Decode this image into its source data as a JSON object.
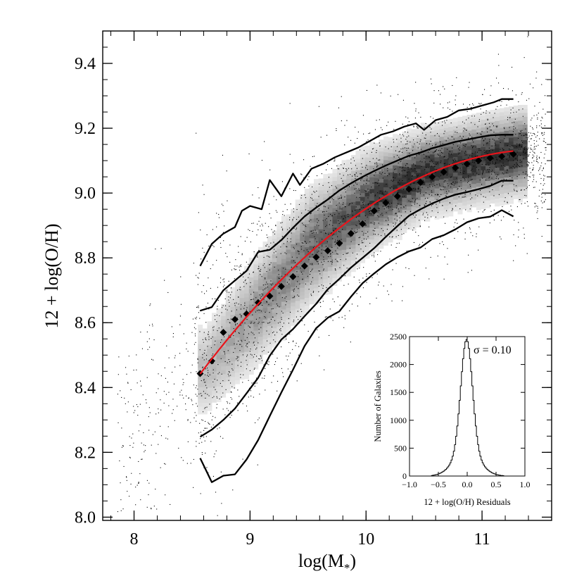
{
  "chart_data": [
    {
      "type": "scatter",
      "title": "",
      "xlabel": "log(M",
      "xlabel_sub": "*",
      "xlabel_close": ")",
      "ylabel": "12 + log(O/H)",
      "xlim": [
        7.73,
        11.6
      ],
      "ylim": [
        7.99,
        9.5
      ],
      "xticks": [
        8,
        9,
        10,
        11
      ],
      "xtick_labels": [
        "8",
        "9",
        "10",
        "11"
      ],
      "yticks": [
        8.0,
        8.2,
        8.4,
        8.6,
        8.8,
        9.0,
        9.2,
        9.4
      ],
      "ytick_labels": [
        "8.0",
        "8.2",
        "8.4",
        "8.6",
        "8.8",
        "9.0",
        "9.2",
        "9.4"
      ],
      "grid": false,
      "colors": {
        "scatter": "#000000",
        "density": "#2a2a2a",
        "contours": "#000000",
        "median_points": "#000000",
        "fit": "#e8141b"
      },
      "density_ridge": {
        "x": [
          8.6,
          9.0,
          9.5,
          10.0,
          10.5,
          11.0,
          11.3
        ],
        "y": [
          8.45,
          8.62,
          8.83,
          8.97,
          9.06,
          9.1,
          9.12
        ],
        "width": [
          0.06,
          0.07,
          0.07,
          0.06,
          0.05,
          0.05,
          0.05
        ]
      },
      "series": [
        {
          "name": "",
          "kind": "contour-upper-outer",
          "x": [
            8.57,
            8.67,
            8.77,
            8.87,
            8.93,
            9.0,
            9.1,
            9.17,
            9.27,
            9.37,
            9.43,
            9.53,
            9.63,
            9.73,
            9.83,
            9.93,
            10.03,
            10.13,
            10.23,
            10.33,
            10.43,
            10.5,
            10.6,
            10.7,
            10.8,
            10.9,
            11.0,
            11.1,
            11.17,
            11.27
          ],
          "y": [
            8.775,
            8.843,
            8.875,
            8.895,
            8.945,
            8.96,
            8.95,
            9.04,
            8.99,
            9.06,
            9.025,
            9.075,
            9.09,
            9.11,
            9.125,
            9.14,
            9.16,
            9.18,
            9.19,
            9.205,
            9.215,
            9.195,
            9.225,
            9.235,
            9.255,
            9.26,
            9.27,
            9.28,
            9.29,
            9.29
          ]
        },
        {
          "name": "",
          "kind": "contour-upper-inner",
          "x": [
            8.57,
            8.67,
            8.77,
            8.87,
            8.97,
            9.07,
            9.17,
            9.27,
            9.37,
            9.47,
            9.57,
            9.67,
            9.77,
            9.87,
            9.97,
            10.07,
            10.17,
            10.27,
            10.37,
            10.47,
            10.57,
            10.67,
            10.77,
            10.87,
            10.97,
            11.07,
            11.17,
            11.27
          ],
          "y": [
            8.637,
            8.648,
            8.7,
            8.73,
            8.76,
            8.818,
            8.825,
            8.855,
            8.893,
            8.928,
            8.955,
            8.98,
            9.008,
            9.03,
            9.05,
            9.068,
            9.085,
            9.1,
            9.115,
            9.125,
            9.138,
            9.148,
            9.158,
            9.165,
            9.172,
            9.178,
            9.18,
            9.18
          ]
        },
        {
          "name": "",
          "kind": "contour-lower-inner",
          "x": [
            8.57,
            8.67,
            8.77,
            8.87,
            8.97,
            9.07,
            9.17,
            9.27,
            9.37,
            9.47,
            9.57,
            9.67,
            9.77,
            9.87,
            9.97,
            10.07,
            10.17,
            10.27,
            10.37,
            10.47,
            10.57,
            10.67,
            10.77,
            10.87,
            10.97,
            11.07,
            11.17,
            11.27
          ],
          "y": [
            8.248,
            8.27,
            8.3,
            8.335,
            8.382,
            8.43,
            8.498,
            8.548,
            8.58,
            8.62,
            8.658,
            8.703,
            8.735,
            8.77,
            8.8,
            8.83,
            8.865,
            8.898,
            8.93,
            8.95,
            8.968,
            8.983,
            8.995,
            9.003,
            9.012,
            9.022,
            9.038,
            9.038
          ]
        },
        {
          "name": "",
          "kind": "contour-lower-outer",
          "x": [
            8.57,
            8.67,
            8.77,
            8.87,
            8.97,
            9.07,
            9.17,
            9.27,
            9.37,
            9.47,
            9.57,
            9.67,
            9.77,
            9.87,
            9.97,
            10.07,
            10.17,
            10.27,
            10.37,
            10.47,
            10.57,
            10.67,
            10.77,
            10.87,
            10.97,
            11.07,
            11.17,
            11.27
          ],
          "y": [
            8.182,
            8.108,
            8.128,
            8.132,
            8.178,
            8.238,
            8.312,
            8.385,
            8.455,
            8.528,
            8.583,
            8.615,
            8.635,
            8.68,
            8.722,
            8.752,
            8.78,
            8.802,
            8.82,
            8.832,
            8.858,
            8.87,
            8.888,
            8.91,
            8.922,
            8.927,
            8.947,
            8.928
          ]
        },
        {
          "name": "",
          "kind": "median-points",
          "x": [
            8.57,
            8.67,
            8.77,
            8.87,
            8.97,
            9.07,
            9.17,
            9.27,
            9.37,
            9.47,
            9.57,
            9.67,
            9.77,
            9.87,
            9.97,
            10.07,
            10.17,
            10.27,
            10.37,
            10.47,
            10.57,
            10.67,
            10.77,
            10.87,
            10.97,
            11.07,
            11.17,
            11.27
          ],
          "y": [
            8.443,
            8.482,
            8.57,
            8.61,
            8.627,
            8.662,
            8.682,
            8.712,
            8.742,
            8.775,
            8.802,
            8.822,
            8.845,
            8.875,
            8.905,
            8.945,
            8.97,
            8.99,
            9.012,
            9.033,
            9.05,
            9.065,
            9.078,
            9.09,
            9.1,
            9.108,
            9.113,
            9.12
          ]
        },
        {
          "name": "",
          "kind": "fit-line",
          "polynomial": [
            -1.492,
            1.847,
            -0.08026
          ],
          "x_range": [
            8.57,
            11.27
          ]
        }
      ]
    },
    {
      "type": "line",
      "title": "",
      "xlabel": "12 + log(O/H) Residuals",
      "ylabel": "Number of Galaxies",
      "xlim": [
        -1.0,
        1.0
      ],
      "ylim": [
        0,
        2500
      ],
      "xticks": [
        -1.0,
        -0.5,
        0.0,
        0.5,
        1.0
      ],
      "xtick_labels": [
        "−1.0",
        "−0.5",
        "0.0",
        "0.5",
        "1.0"
      ],
      "yticks": [
        0,
        500,
        1000,
        1500,
        2000,
        2500
      ],
      "ytick_labels": [
        "0",
        "500",
        "1000",
        "1500",
        "2000",
        "2500"
      ],
      "annotation": "σ =  0.10",
      "grid": false,
      "histogram": {
        "center": -0.02,
        "sigma": 0.1,
        "peak": 2450,
        "bin_width": 0.02,
        "x_range": [
          -0.62,
          0.62
        ]
      }
    }
  ]
}
